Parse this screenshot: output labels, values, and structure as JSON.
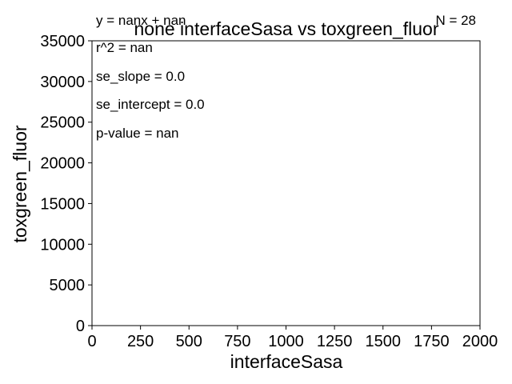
{
  "chart_data": {
    "type": "scatter",
    "title": "none interfaceSasa vs toxgreen_fluor",
    "xlabel": "interfaceSasa",
    "ylabel": "toxgreen_fluor",
    "xlim": [
      0,
      2000
    ],
    "ylim": [
      0,
      35000
    ],
    "x_ticks": [
      0,
      250,
      500,
      750,
      1000,
      1250,
      1500,
      1750,
      2000
    ],
    "y_ticks": [
      0,
      5000,
      10000,
      15000,
      20000,
      25000,
      30000,
      35000
    ],
    "points": [],
    "grid": false,
    "annotations": {
      "equation": "y = nanx + nan",
      "n": "N = 28",
      "r2": "r^2 = nan",
      "se_slope": "se_slope = 0.0",
      "se_intercept": "se_intercept = 0.0",
      "p_value": "p-value = nan"
    },
    "colors": {
      "axis": "#000000",
      "background": "#ffffff"
    }
  }
}
